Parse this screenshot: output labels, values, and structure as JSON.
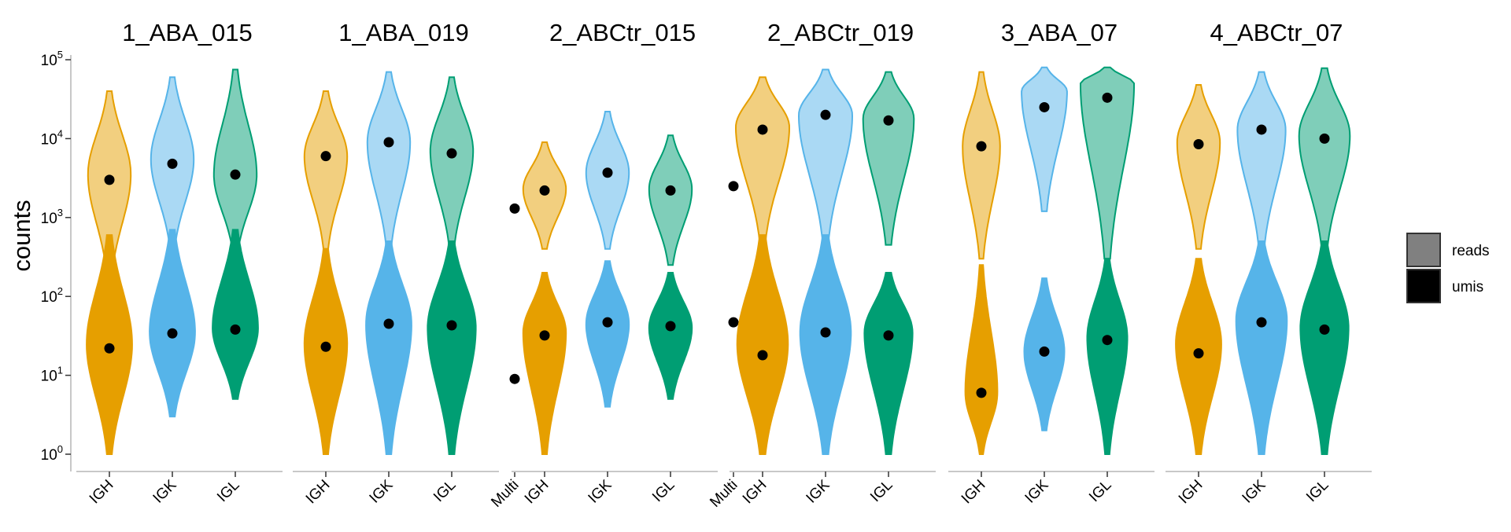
{
  "chart_data": {
    "type": "violin",
    "ylabel": "counts",
    "yscale": "log10",
    "ylim": [
      1,
      100000
    ],
    "y_ticks": [
      {
        "base": "10",
        "exp": "0",
        "value": 1
      },
      {
        "base": "10",
        "exp": "1",
        "value": 10
      },
      {
        "base": "10",
        "exp": "2",
        "value": 100
      },
      {
        "base": "10",
        "exp": "3",
        "value": 1000
      },
      {
        "base": "10",
        "exp": "4",
        "value": 10000
      },
      {
        "base": "10",
        "exp": "5",
        "value": 100000
      }
    ],
    "colors": {
      "IGH": "#E69F00",
      "IGK": "#56B4E9",
      "IGL": "#009E73",
      "median_point": "#000000"
    },
    "legend": {
      "position": "right",
      "entries": [
        {
          "label": "reads",
          "fill": "#808080"
        },
        {
          "label": "umis",
          "fill": "#000000"
        }
      ]
    },
    "panels": [
      {
        "title": "1_ABA_015",
        "categories": [
          "IGH",
          "IGK",
          "IGL"
        ],
        "groups": [
          {
            "category": "IGH",
            "reads": {
              "min": 180,
              "max": 40000,
              "median": 3000,
              "mode": 3500,
              "width": 0.8
            },
            "umis": {
              "min": 1,
              "max": 600,
              "median": 22,
              "mode": 25,
              "width": 0.85
            }
          },
          {
            "category": "IGK",
            "reads": {
              "min": 400,
              "max": 60000,
              "median": 4800,
              "mode": 5500,
              "width": 0.8
            },
            "umis": {
              "min": 3,
              "max": 700,
              "median": 34,
              "mode": 35,
              "width": 0.85
            }
          },
          {
            "category": "IGL",
            "reads": {
              "min": 350,
              "max": 75000,
              "median": 3500,
              "mode": 3500,
              "width": 0.8
            },
            "umis": {
              "min": 5,
              "max": 700,
              "median": 38,
              "mode": 40,
              "width": 0.85
            }
          }
        ]
      },
      {
        "title": "1_ABA_019",
        "categories": [
          "IGH",
          "IGK",
          "IGL",
          "Multi"
        ],
        "groups": [
          {
            "category": "IGH",
            "reads": {
              "min": 400,
              "max": 40000,
              "median": 6000,
              "mode": 6000,
              "width": 0.8
            },
            "umis": {
              "min": 1,
              "max": 400,
              "median": 23,
              "mode": 25,
              "width": 0.8
            }
          },
          {
            "category": "IGK",
            "reads": {
              "min": 400,
              "max": 70000,
              "median": 9000,
              "mode": 9000,
              "width": 0.8
            },
            "umis": {
              "min": 1,
              "max": 500,
              "median": 45,
              "mode": 45,
              "width": 0.85
            }
          },
          {
            "category": "IGL",
            "reads": {
              "min": 400,
              "max": 60000,
              "median": 6500,
              "mode": 7000,
              "width": 0.8
            },
            "umis": {
              "min": 1,
              "max": 500,
              "median": 43,
              "mode": 40,
              "width": 0.9
            }
          },
          {
            "category": "Multi",
            "reads": {
              "median": 1300
            },
            "umis": {
              "median": 9
            }
          }
        ]
      },
      {
        "title": "2_ABCtr_015",
        "categories": [
          "IGH",
          "IGK",
          "IGL",
          "Multi"
        ],
        "groups": [
          {
            "category": "IGH",
            "reads": {
              "min": 400,
              "max": 9000,
              "median": 2200,
              "mode": 2300,
              "width": 0.8
            },
            "umis": {
              "min": 1,
              "max": 200,
              "median": 32,
              "mode": 35,
              "width": 0.8
            }
          },
          {
            "category": "IGK",
            "reads": {
              "min": 400,
              "max": 22000,
              "median": 3700,
              "mode": 3700,
              "width": 0.8
            },
            "umis": {
              "min": 4,
              "max": 280,
              "median": 47,
              "mode": 45,
              "width": 0.8
            }
          },
          {
            "category": "IGL",
            "reads": {
              "min": 250,
              "max": 11000,
              "median": 2200,
              "mode": 2300,
              "width": 0.8
            },
            "umis": {
              "min": 5,
              "max": 200,
              "median": 42,
              "mode": 40,
              "width": 0.8
            }
          },
          {
            "category": "Multi",
            "reads": {
              "median": 2500
            },
            "umis": {
              "median": 47
            }
          }
        ]
      },
      {
        "title": "2_ABCtr_019",
        "categories": [
          "IGH",
          "IGK",
          "IGL"
        ],
        "groups": [
          {
            "category": "IGH",
            "reads": {
              "min": 500,
              "max": 60000,
              "median": 13000,
              "mode": 14000,
              "width": 1.0
            },
            "umis": {
              "min": 1,
              "max": 600,
              "median": 18,
              "mode": 25,
              "width": 0.95
            }
          },
          {
            "category": "IGK",
            "reads": {
              "min": 500,
              "max": 75000,
              "median": 20000,
              "mode": 20000,
              "width": 1.0
            },
            "umis": {
              "min": 1,
              "max": 600,
              "median": 35,
              "mode": 35,
              "width": 0.95
            }
          },
          {
            "category": "IGL",
            "reads": {
              "min": 450,
              "max": 70000,
              "median": 17000,
              "mode": 18000,
              "width": 0.95
            },
            "umis": {
              "min": 1,
              "max": 200,
              "median": 32,
              "mode": 35,
              "width": 0.9
            }
          }
        ]
      },
      {
        "title": "3_ABA_07",
        "categories": [
          "IGH",
          "IGK",
          "IGL"
        ],
        "groups": [
          {
            "category": "IGH",
            "reads": {
              "min": 300,
              "max": 70000,
              "median": 8000,
              "mode": 8000,
              "width": 0.7
            },
            "umis": {
              "min": 1,
              "max": 250,
              "median": 6,
              "mode": 6,
              "width": 0.6
            }
          },
          {
            "category": "IGK",
            "reads": {
              "min": 1200,
              "max": 80000,
              "median": 25000,
              "mode": 40000,
              "width": 0.85
            },
            "umis": {
              "min": 2,
              "max": 170,
              "median": 20,
              "mode": 20,
              "width": 0.75
            }
          },
          {
            "category": "IGL",
            "reads": {
              "min": 300,
              "max": 80000,
              "median": 33000,
              "mode": 50000,
              "width": 1.0
            },
            "umis": {
              "min": 1,
              "max": 300,
              "median": 28,
              "mode": 30,
              "width": 0.75
            }
          }
        ]
      },
      {
        "title": "4_ABCtr_07",
        "categories": [
          "IGH",
          "IGK",
          "IGL"
        ],
        "groups": [
          {
            "category": "IGH",
            "reads": {
              "min": 400,
              "max": 48000,
              "median": 8500,
              "mode": 9000,
              "width": 0.8
            },
            "umis": {
              "min": 1,
              "max": 300,
              "median": 19,
              "mode": 25,
              "width": 0.85
            }
          },
          {
            "category": "IGK",
            "reads": {
              "min": 400,
              "max": 70000,
              "median": 13000,
              "mode": 13000,
              "width": 0.9
            },
            "umis": {
              "min": 1,
              "max": 500,
              "median": 47,
              "mode": 50,
              "width": 0.95
            }
          },
          {
            "category": "IGL",
            "reads": {
              "min": 400,
              "max": 78000,
              "median": 10000,
              "mode": 11000,
              "width": 0.95
            },
            "umis": {
              "min": 1,
              "max": 500,
              "median": 38,
              "mode": 40,
              "width": 0.9
            }
          }
        ]
      }
    ]
  }
}
